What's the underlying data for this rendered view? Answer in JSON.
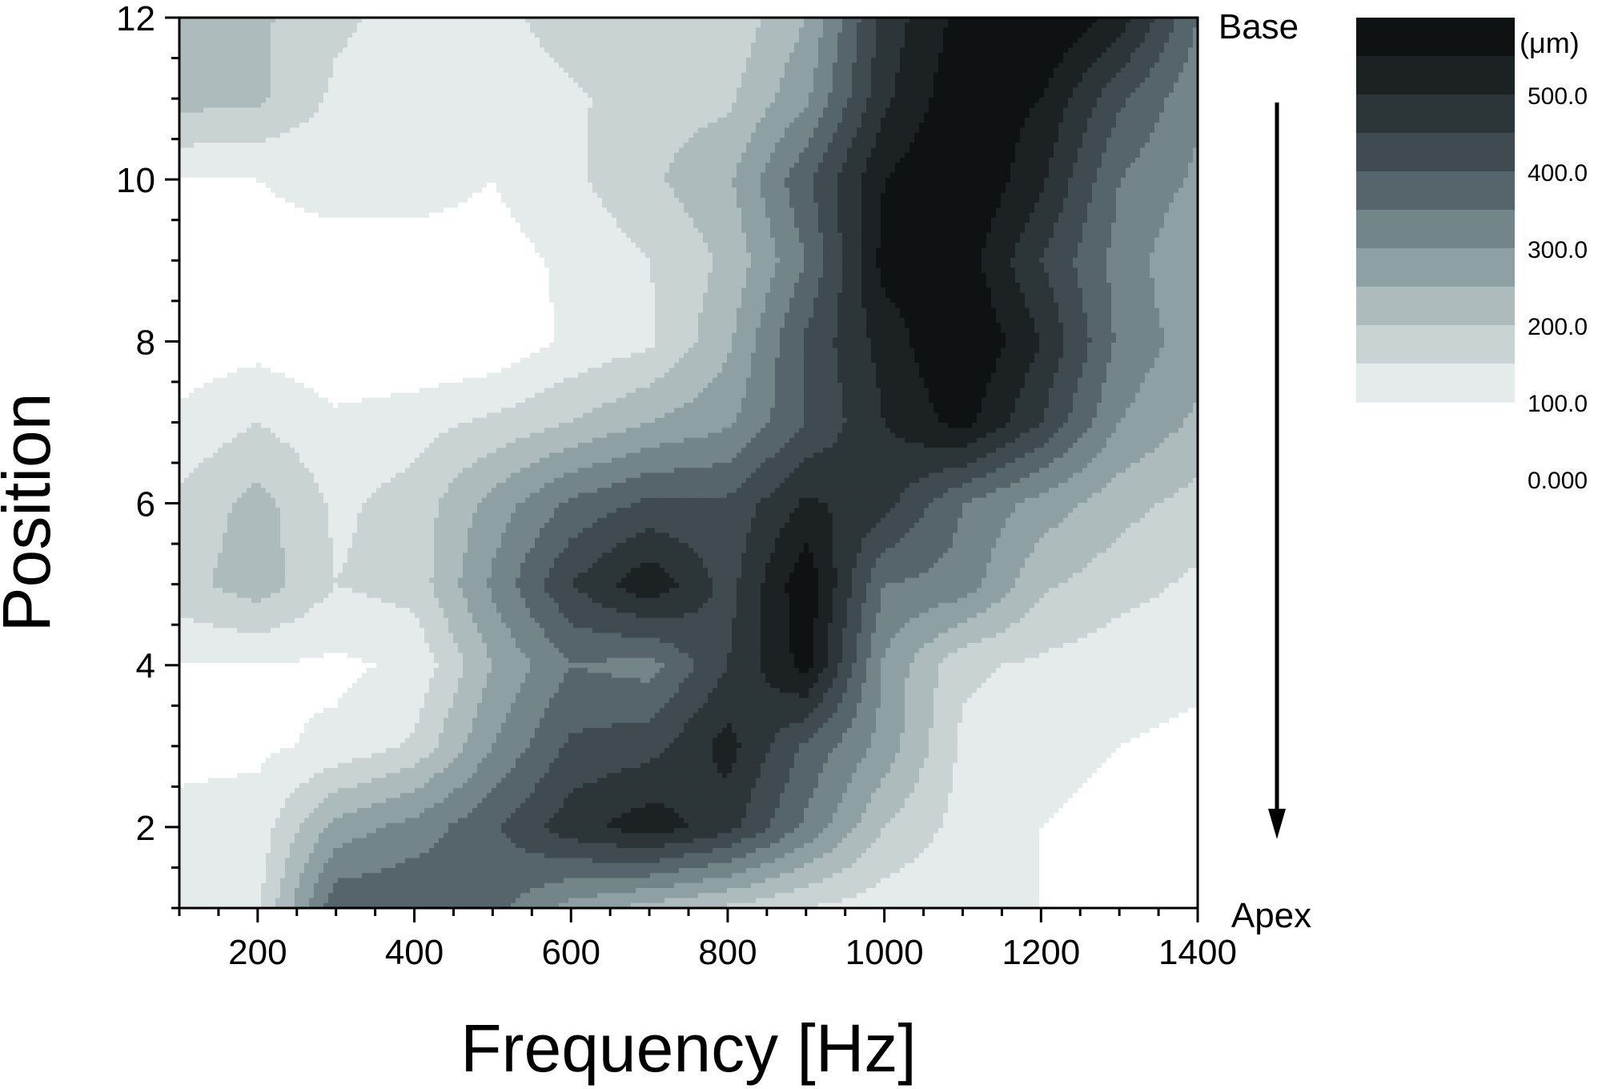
{
  "chart_data": {
    "type": "heatmap",
    "subtype": "filled-contour",
    "title": "",
    "xlabel": "Frequency [Hz]",
    "ylabel": "Position",
    "xlim": [
      100,
      1400
    ],
    "ylim": [
      1,
      12
    ],
    "x_ticks": [
      200,
      400,
      600,
      800,
      1000,
      1200,
      1400
    ],
    "y_ticks": [
      2,
      4,
      6,
      8,
      10,
      12
    ],
    "grid": false,
    "annotations": {
      "top": "Base",
      "bottom": "Apex",
      "arrow": "Base to Apex"
    },
    "colorscale": {
      "unit": "(μm)",
      "labels": [
        "500.0",
        "400.0",
        "300.0",
        "200.0",
        "100.0",
        "0.000"
      ],
      "levels": [
        0,
        50,
        100,
        150,
        200,
        250,
        300,
        350,
        400,
        450,
        500,
        550
      ],
      "colors": [
        "#ffffff",
        "#e5eaea",
        "#c9d3d4",
        "#aebbbd",
        "#8fa0a4",
        "#748589",
        "#56656b",
        "#3f4b50",
        "#2c3538",
        "#1c2224",
        "#0e1213"
      ],
      "legend_placement": "right"
    },
    "x": [
      100,
      200,
      300,
      400,
      500,
      600,
      700,
      800,
      900,
      1000,
      1100,
      1200,
      1300,
      1400
    ],
    "y": [
      1,
      2,
      3,
      4,
      5,
      6,
      7,
      8,
      9,
      10,
      11,
      12
    ],
    "z": [
      [
        80,
        90,
        340,
        350,
        320,
        230,
        180,
        140,
        100,
        70,
        60,
        50,
        30,
        20
      ],
      [
        60,
        70,
        220,
        270,
        340,
        430,
        480,
        420,
        290,
        150,
        80,
        50,
        40,
        30
      ],
      [
        40,
        40,
        60,
        110,
        250,
        360,
        380,
        470,
        340,
        230,
        90,
        60,
        50,
        40
      ],
      [
        50,
        50,
        40,
        60,
        200,
        300,
        280,
        400,
        520,
        240,
        110,
        90,
        70,
        60
      ],
      [
        130,
        180,
        100,
        120,
        260,
        400,
        490,
        380,
        540,
        300,
        280,
        160,
        120,
        90
      ],
      [
        110,
        170,
        90,
        120,
        220,
        310,
        360,
        360,
        460,
        420,
        300,
        230,
        170,
        130
      ],
      [
        60,
        100,
        60,
        80,
        110,
        150,
        200,
        240,
        350,
        450,
        520,
        400,
        250,
        190
      ],
      [
        20,
        30,
        10,
        0,
        10,
        60,
        90,
        190,
        360,
        470,
        560,
        450,
        290,
        220
      ],
      [
        30,
        40,
        40,
        30,
        30,
        60,
        100,
        160,
        300,
        520,
        530,
        400,
        280,
        200
      ],
      [
        50,
        50,
        60,
        70,
        50,
        90,
        140,
        190,
        340,
        500,
        560,
        460,
        300,
        240
      ],
      [
        170,
        160,
        90,
        70,
        60,
        90,
        130,
        140,
        240,
        440,
        540,
        500,
        360,
        260
      ],
      [
        180,
        160,
        110,
        80,
        80,
        130,
        150,
        110,
        200,
        420,
        520,
        560,
        480,
        300
      ]
    ]
  }
}
